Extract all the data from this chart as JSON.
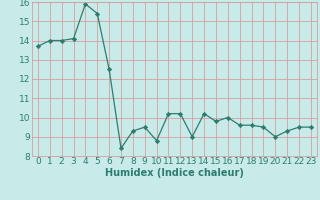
{
  "x": [
    0,
    1,
    2,
    3,
    4,
    5,
    6,
    7,
    8,
    9,
    10,
    11,
    12,
    13,
    14,
    15,
    16,
    17,
    18,
    19,
    20,
    21,
    22,
    23
  ],
  "y": [
    13.7,
    14.0,
    14.0,
    14.1,
    15.9,
    15.4,
    12.5,
    8.4,
    9.3,
    9.5,
    8.8,
    10.2,
    10.2,
    9.0,
    10.2,
    9.8,
    10.0,
    9.6,
    9.6,
    9.5,
    9.0,
    9.3,
    9.5,
    9.5
  ],
  "line_color": "#2d7d6e",
  "marker_color": "#2d7d6e",
  "bg_color": "#c8eae8",
  "grid_color": "#d4a0a0",
  "xlabel": "Humidex (Indice chaleur)",
  "ylim": [
    8,
    16
  ],
  "xlim": [
    -0.5,
    23.5
  ],
  "yticks": [
    8,
    9,
    10,
    11,
    12,
    13,
    14,
    15,
    16
  ],
  "xticks": [
    0,
    1,
    2,
    3,
    4,
    5,
    6,
    7,
    8,
    9,
    10,
    11,
    12,
    13,
    14,
    15,
    16,
    17,
    18,
    19,
    20,
    21,
    22,
    23
  ],
  "xlabel_fontsize": 7,
  "tick_fontsize": 6.5,
  "tick_color": "#2d7d6e",
  "label_color": "#2d7d6e"
}
